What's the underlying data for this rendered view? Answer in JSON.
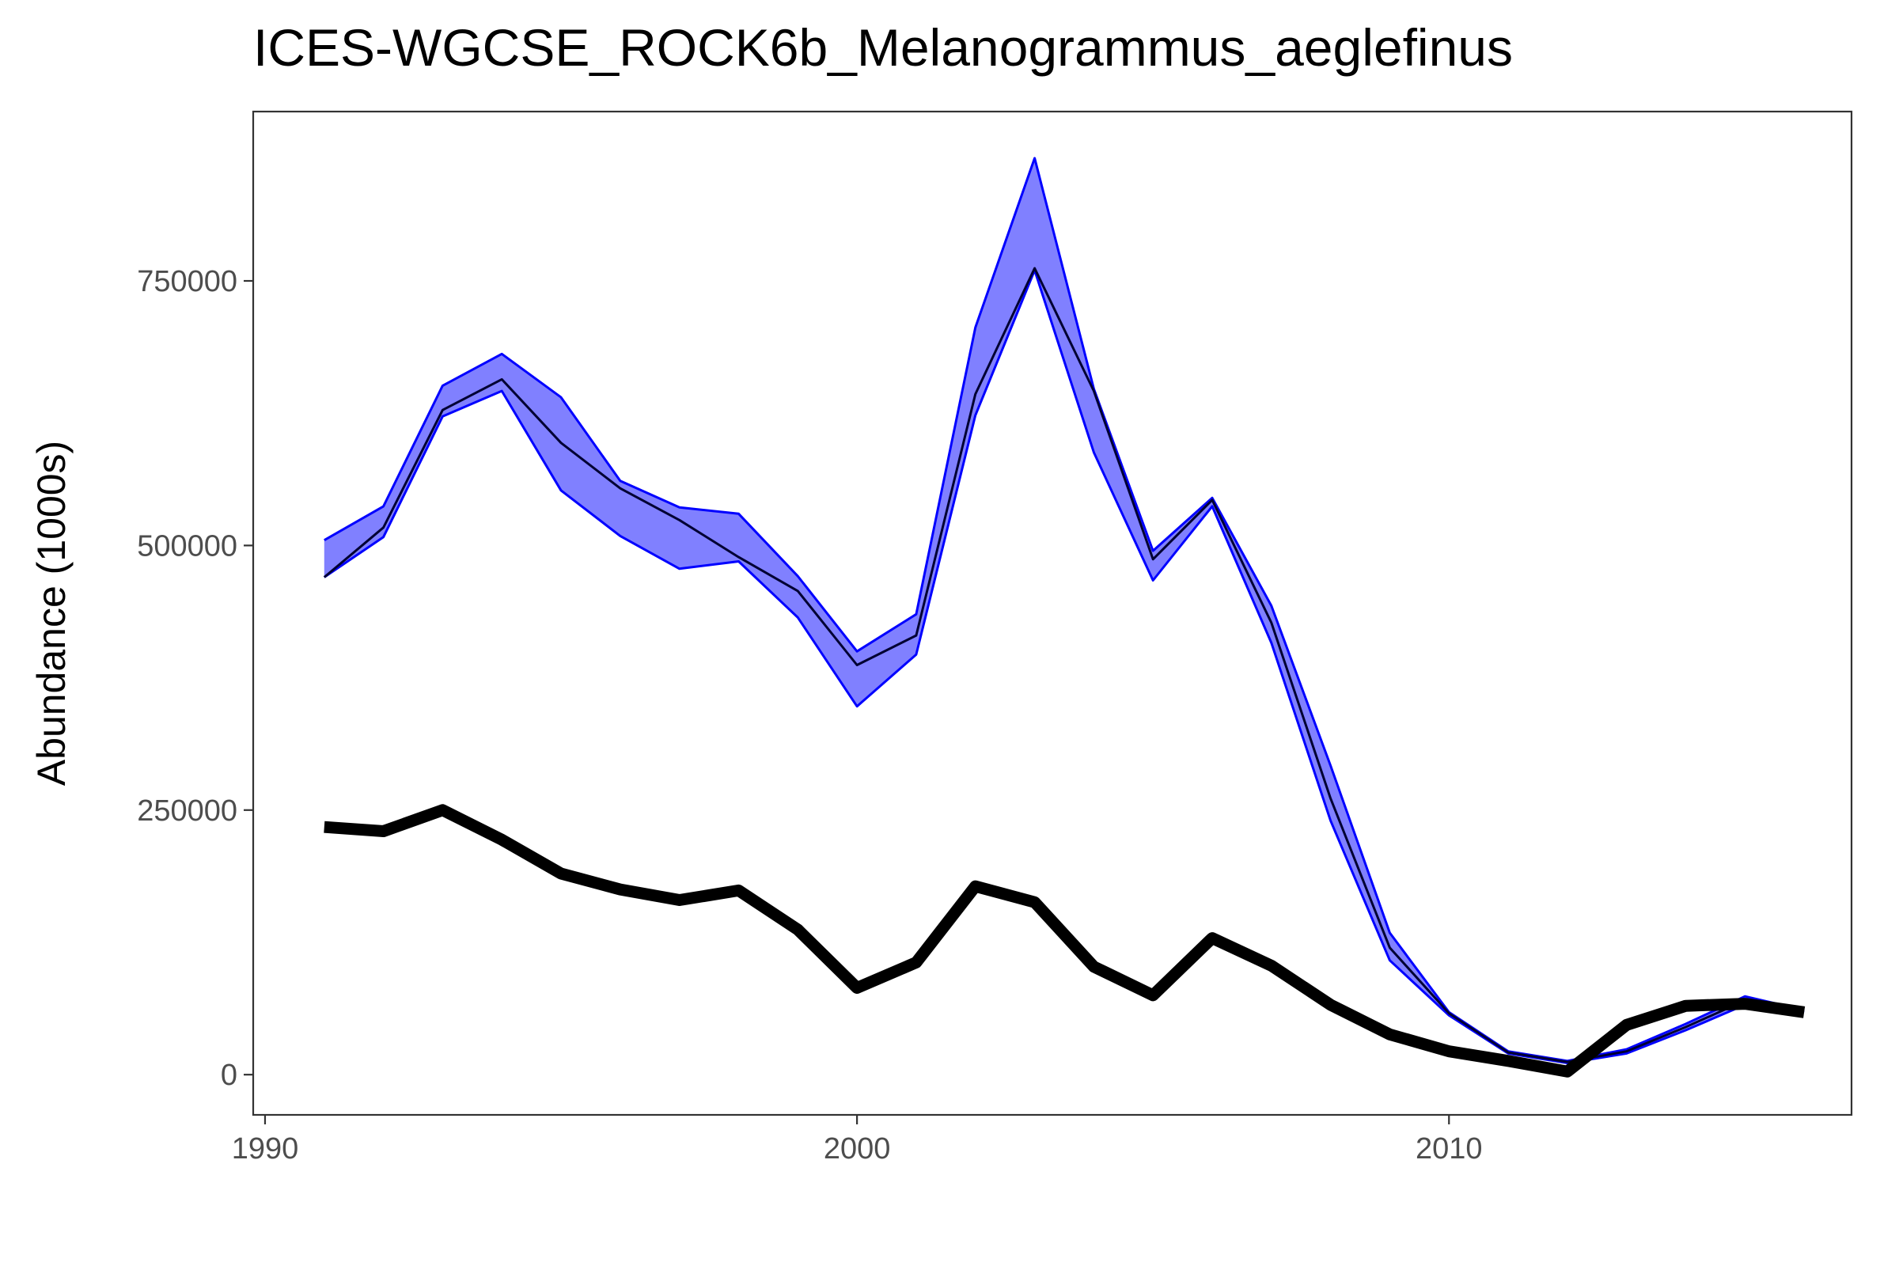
{
  "chart_data": {
    "type": "line",
    "title": "ICES-WGCSE_ROCK6b_Melanogrammus_aeglefinus",
    "xlabel": "",
    "ylabel": "Abundance (1000s)",
    "x_ticks": [
      1990,
      2000,
      2010
    ],
    "y_ticks": [
      0,
      250000,
      500000,
      750000
    ],
    "xlim": [
      1989.8,
      2016.8
    ],
    "ylim": [
      -38000,
      910000
    ],
    "grid": false,
    "legend": "none",
    "colors": {
      "band_fill": "#8080ff",
      "band_line": "#0000ff",
      "mid_line": "#000033",
      "bold_line": "#000000"
    },
    "x": [
      1991,
      1992,
      1993,
      1994,
      1995,
      1996,
      1997,
      1998,
      1999,
      2000,
      2001,
      2002,
      2003,
      2004,
      2005,
      2006,
      2007,
      2008,
      2009,
      2010,
      2011,
      2012,
      2013,
      2014,
      2015,
      2016
    ],
    "series": [
      {
        "role": "band_upper",
        "values": [
          505000,
          537000,
          651000,
          681000,
          640000,
          561000,
          536000,
          530000,
          471000,
          400000,
          435000,
          706000,
          866000,
          648000,
          495000,
          545000,
          443000,
          292000,
          134000,
          59000,
          22000,
          13000,
          24000,
          48000,
          74000,
          61000
        ]
      },
      {
        "role": "band_lower",
        "values": [
          470000,
          508000,
          622000,
          646000,
          552000,
          509000,
          478000,
          485000,
          432000,
          348000,
          397000,
          623000,
          760000,
          588000,
          467000,
          537000,
          408000,
          240000,
          108000,
          56000,
          20000,
          11000,
          20000,
          42000,
          66000,
          59000
        ]
      },
      {
        "role": "mid",
        "values": [
          470000,
          517000,
          628000,
          657000,
          597000,
          554000,
          524000,
          489000,
          457000,
          387000,
          415000,
          643000,
          762000,
          646000,
          487000,
          543000,
          427000,
          261000,
          120000,
          58000,
          21000,
          12000,
          22000,
          45000,
          70000,
          60000
        ]
      },
      {
        "role": "bold",
        "values": [
          234000,
          230000,
          250000,
          222000,
          190000,
          175000,
          165000,
          174000,
          137000,
          82000,
          106000,
          178000,
          163000,
          102000,
          75000,
          129000,
          103000,
          66000,
          38000,
          22000,
          13000,
          3000,
          47000,
          65000,
          67000,
          59000
        ]
      }
    ]
  }
}
